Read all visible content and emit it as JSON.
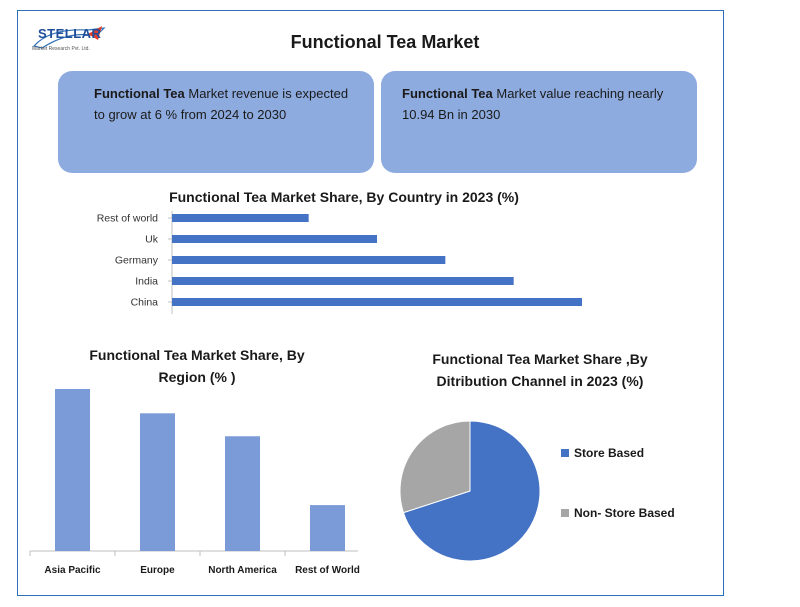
{
  "header": {
    "logo_text": "STELLAR",
    "logo_sub": "Market Research Pvt. Ltd.",
    "title": "Functional Tea Market"
  },
  "info_boxes": [
    {
      "bold": "Functional Tea",
      "text": " Market revenue is expected to grow at 6 % from 2024 to 2030"
    },
    {
      "bold": "Functional Tea",
      "text": " Market value reaching nearly 10.94 Bn in 2030"
    }
  ],
  "colors": {
    "frame": "#2f6fb5",
    "box_fill": "#8eabdf",
    "bar_country": "#4472c4",
    "bar_region": "#7b9bd8",
    "pie_store": "#4472c4",
    "pie_non_store": "#a6a6a6"
  },
  "chart_data": [
    {
      "type": "bar",
      "orientation": "horizontal",
      "title": "Functional Tea Market Share, By Country in 2023 (%)",
      "categories": [
        "Rest of world",
        "Uk",
        "Germany",
        "India",
        "China"
      ],
      "values": [
        20,
        30,
        40,
        50,
        60
      ],
      "xlim": [
        0,
        60
      ]
    },
    {
      "type": "bar",
      "title_lines": [
        "Functional Tea Market Share, By",
        "Region (% )"
      ],
      "categories": [
        "Asia Pacific",
        "Europe",
        "North America",
        "Rest of World"
      ],
      "values": [
        36,
        30.6,
        25.5,
        10.2
      ],
      "ylim": [
        0,
        40
      ]
    },
    {
      "type": "pie",
      "title_lines": [
        "Functional Tea Market Share ,By",
        "Ditribution Channel in 2023 (%)"
      ],
      "categories": [
        "Store Based",
        "Non- Store Based"
      ],
      "values": [
        70,
        30
      ],
      "legend": "right"
    }
  ]
}
